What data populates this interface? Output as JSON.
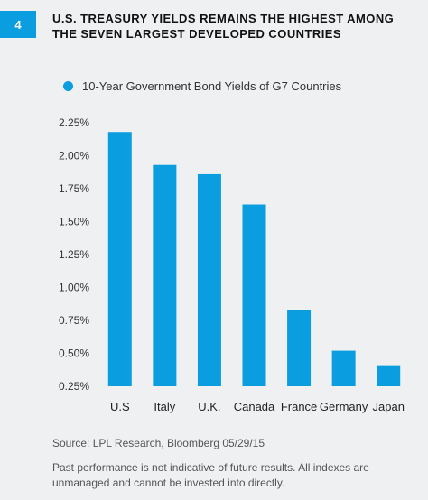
{
  "figure": {
    "number": "4",
    "title": "U.S. Treasury Yields Remains the Highest Among the Seven Largest Developed Countries"
  },
  "chart_data": {
    "type": "bar",
    "title": "U.S. Treasury Yields Remains the Highest Among the Seven Largest Developed Countries",
    "categories": [
      "U.S",
      "Italy",
      "U.K.",
      "Canada",
      "France",
      "Germany",
      "Japan"
    ],
    "series": [
      {
        "name": "10-Year Government Bond Yields of G7 Countries",
        "values": [
          2.18,
          1.93,
          1.86,
          1.63,
          0.83,
          0.52,
          0.41
        ]
      }
    ],
    "yticks": [
      "2.25%",
      "2.00%",
      "1.75%",
      "1.50%",
      "1.25%",
      "1.00%",
      "0.75%",
      "0.50%",
      "0.25%"
    ],
    "ylim": [
      0.25,
      2.25
    ],
    "xlabel": "",
    "ylabel": "",
    "grid": false,
    "legend_position": "top",
    "bar_color": "#0a9de0"
  },
  "footer": {
    "source": "Source: LPL Research, Bloomberg   05/29/15",
    "disclaimer": "Past performance is not indicative of future results. All indexes are unmanaged and cannot be invested into directly."
  }
}
